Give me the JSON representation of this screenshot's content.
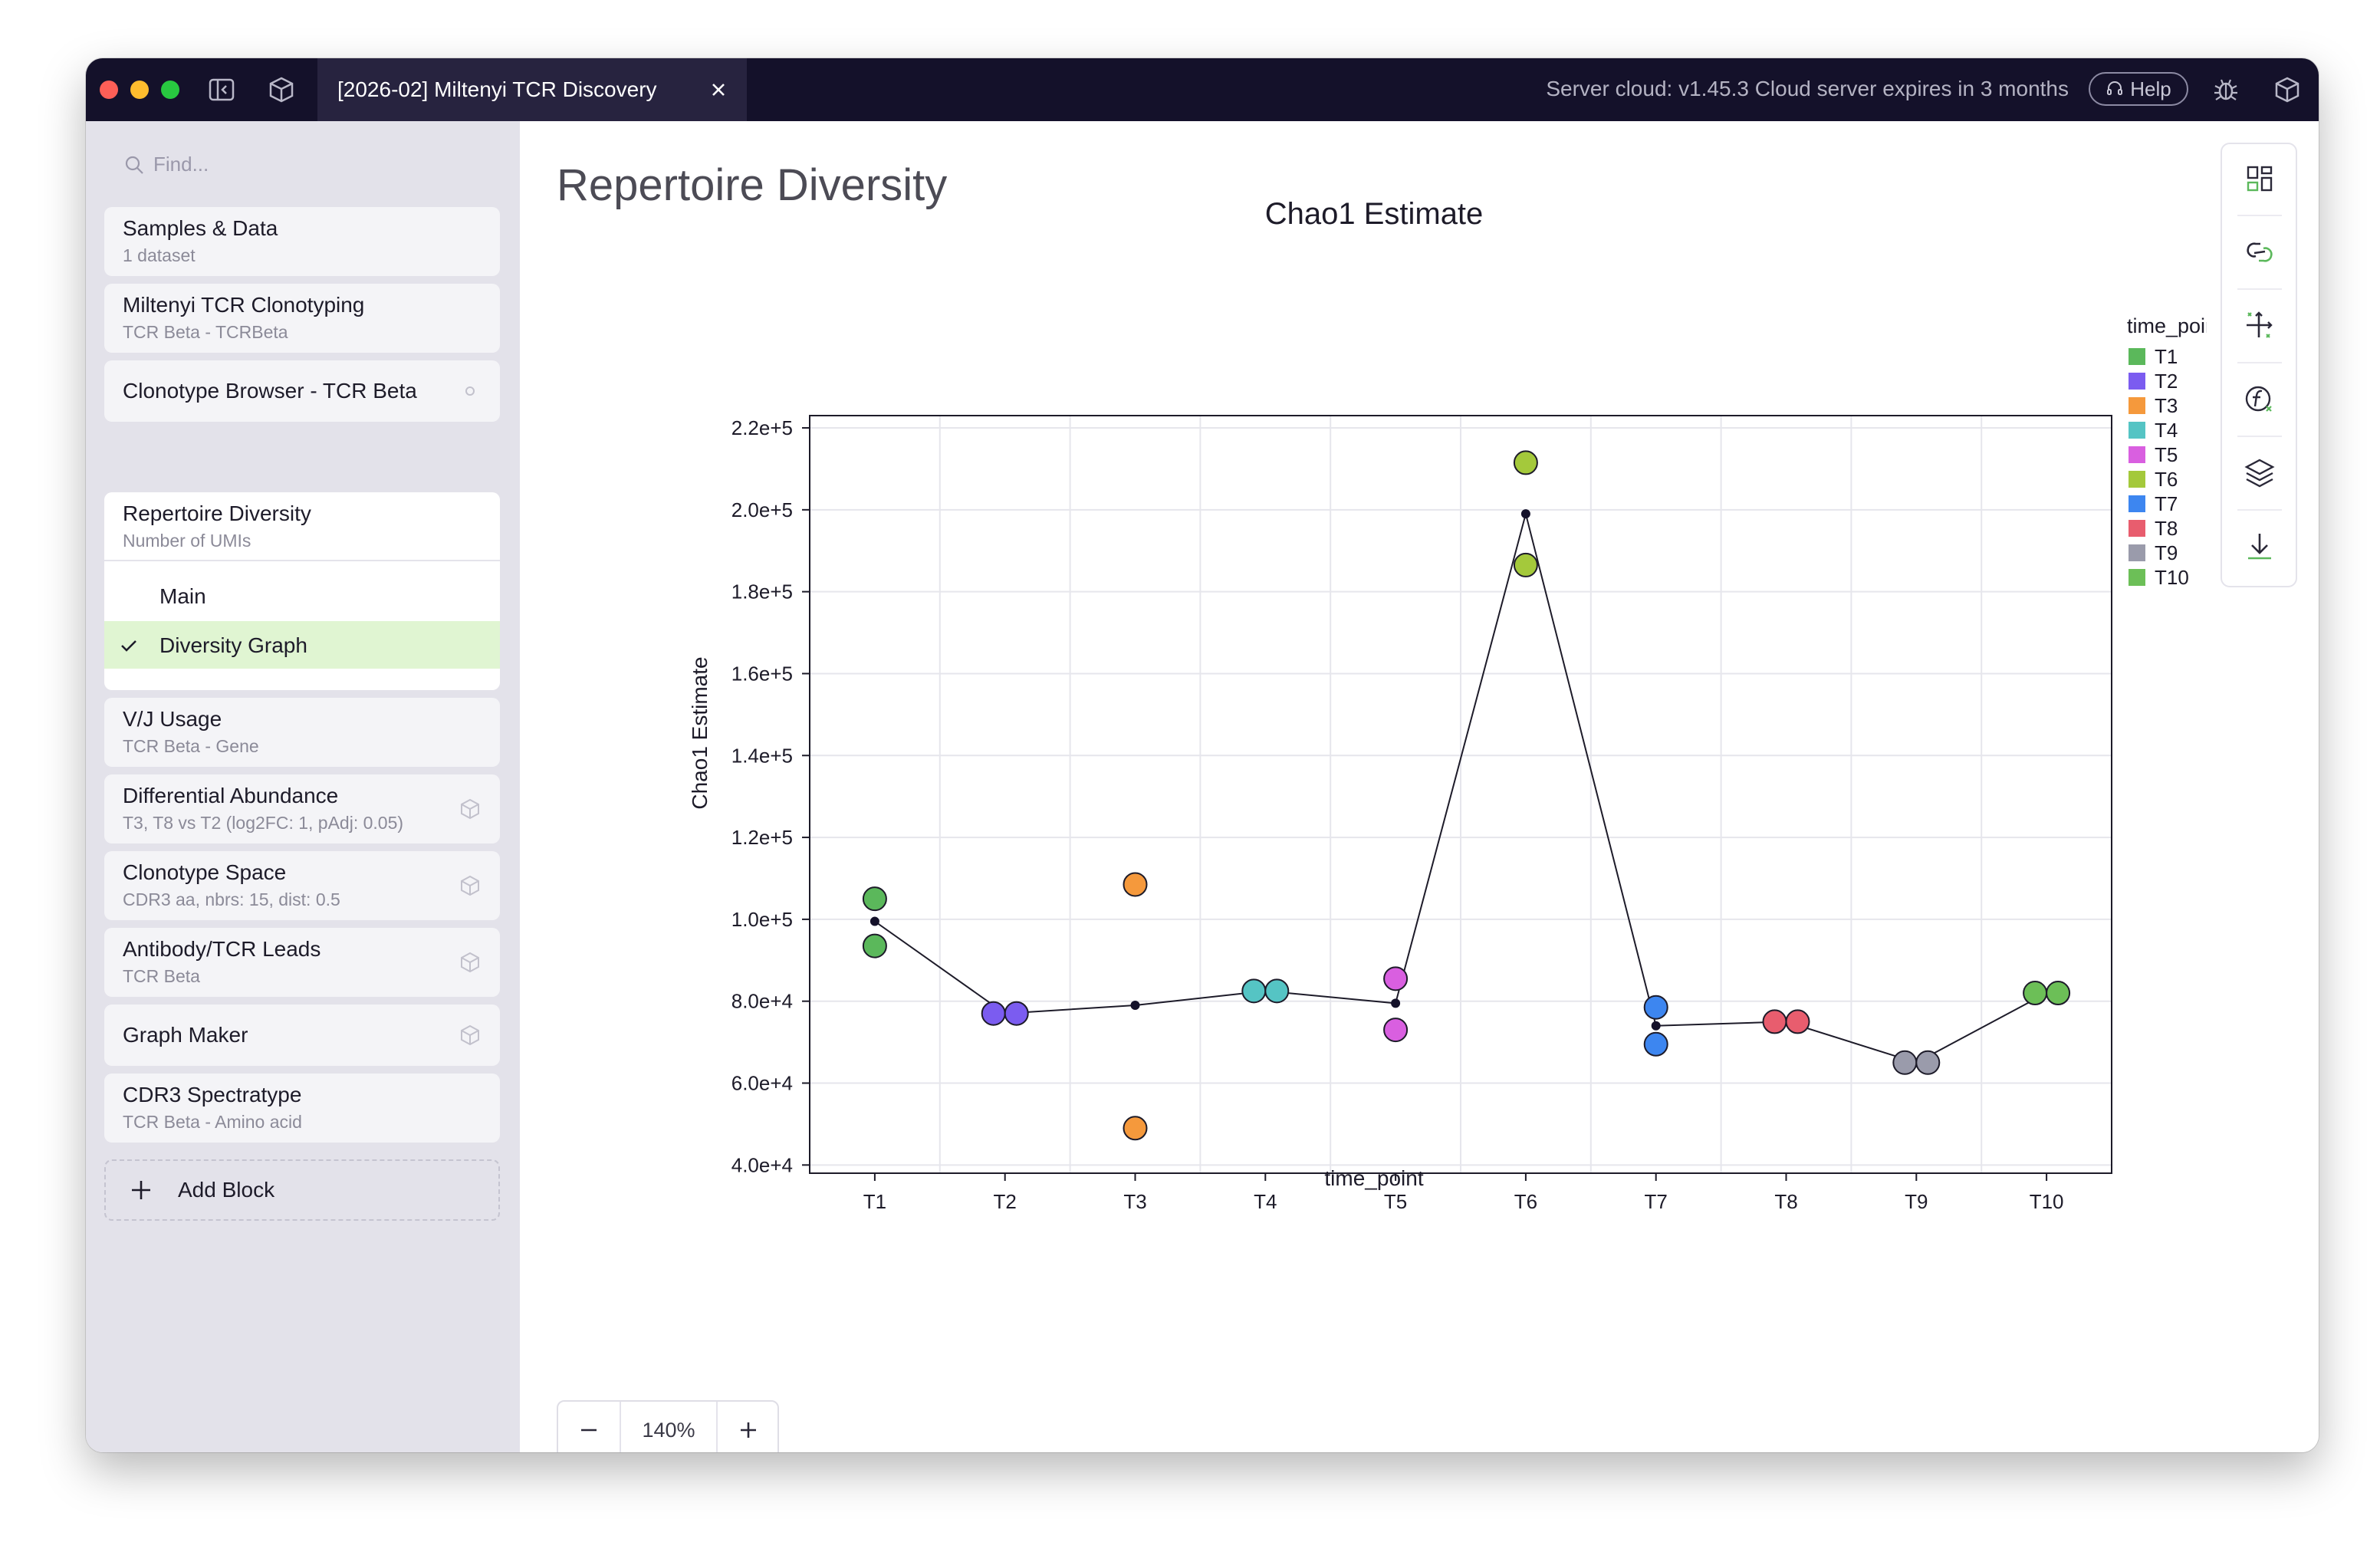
{
  "window": {
    "tab_title": "[2026-02] Miltenyi TCR Discovery",
    "server_status": "Server cloud: v1.45.3 Cloud server expires in 3 months",
    "help_label": "Help"
  },
  "sidebar": {
    "search_placeholder": "Find...",
    "blocks": [
      {
        "title": "Samples & Data",
        "subtitle": "1 dataset"
      },
      {
        "title": "Miltenyi TCR Clonotyping",
        "subtitle": "TCR Beta - TCRBeta"
      },
      {
        "title": "Clonotype Browser - TCR Beta",
        "subtitle": ""
      },
      {
        "title": "Repertoire Diversity",
        "subtitle": "Number of UMIs",
        "subitems": [
          "Main",
          "Diversity Graph"
        ],
        "active_subitem": "Diversity Graph"
      },
      {
        "title": "V/J Usage",
        "subtitle": "TCR Beta - Gene"
      },
      {
        "title": "Differential Abundance",
        "subtitle": "T3, T8 vs T2 (log2FC: 1, pAdj: 0.05)"
      },
      {
        "title": "Clonotype Space",
        "subtitle": "CDR3 aa, nbrs: 15, dist: 0.5"
      },
      {
        "title": "Antibody/TCR Leads",
        "subtitle": "TCR Beta"
      },
      {
        "title": "Graph Maker",
        "subtitle": ""
      },
      {
        "title": "CDR3 Spectratype",
        "subtitle": "TCR Beta - Amino acid"
      }
    ],
    "add_block_label": "Add Block"
  },
  "main": {
    "page_title": "Repertoire Diversity",
    "zoom_label": "140%"
  },
  "chart_data": {
    "type": "scatter",
    "title": "Chao1 Estimate",
    "xlabel": "time_point",
    "ylabel": "Chao1 Estimate",
    "categories": [
      "T1",
      "T2",
      "T3",
      "T4",
      "T5",
      "T6",
      "T7",
      "T8",
      "T9",
      "T10"
    ],
    "ylim": [
      38000,
      223000
    ],
    "yticks": [
      40000,
      60000,
      80000,
      100000,
      120000,
      140000,
      160000,
      180000,
      200000,
      220000
    ],
    "ytick_labels": [
      "4.0e+4",
      "6.0e+4",
      "8.0e+4",
      "1.0e+5",
      "1.2e+5",
      "1.4e+5",
      "1.6e+5",
      "1.8e+5",
      "2.0e+5",
      "2.2e+5"
    ],
    "grid": true,
    "legend_title": "time_point",
    "legend_position": "right",
    "colors": {
      "T1": "#5bb85b",
      "T2": "#7b5cf0",
      "T3": "#f5993c",
      "T4": "#55c4c4",
      "T5": "#d95fe0",
      "T6": "#a4c93b",
      "T7": "#3d86f0",
      "T8": "#e85d6e",
      "T9": "#9a9bab",
      "T10": "#6cbf57"
    },
    "points": [
      {
        "category": "T1",
        "values": [
          105000,
          93500
        ]
      },
      {
        "category": "T2",
        "values": [
          77000,
          77000
        ]
      },
      {
        "category": "T3",
        "values": [
          108500,
          49000
        ]
      },
      {
        "category": "T4",
        "values": [
          82500,
          82500
        ]
      },
      {
        "category": "T5",
        "values": [
          85500,
          73000
        ]
      },
      {
        "category": "T6",
        "values": [
          211500,
          186500
        ]
      },
      {
        "category": "T7",
        "values": [
          78500,
          69500
        ]
      },
      {
        "category": "T8",
        "values": [
          75000,
          75000
        ]
      },
      {
        "category": "T9",
        "values": [
          65000,
          65000
        ]
      },
      {
        "category": "T10",
        "values": [
          82000,
          82000
        ]
      }
    ],
    "mean_line": [
      99500,
      77000,
      79000,
      82500,
      79500,
      199000,
      74000,
      75000,
      65000,
      82000
    ]
  }
}
